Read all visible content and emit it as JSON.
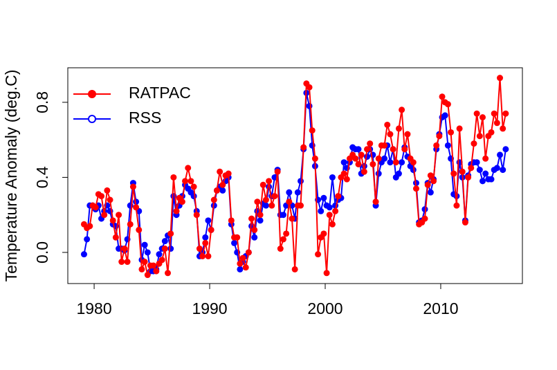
{
  "chart_data": {
    "type": "line",
    "ylabel": "Temperature Anomaly (deg.C)",
    "legend": "top-left",
    "xlim": [
      1977.72,
      2017.07
    ],
    "ylim": [
      -0.166,
      0.984
    ],
    "xticks": [
      1980,
      1990,
      2000,
      2010
    ],
    "yticks": [
      {
        "value": 0,
        "label": "0.0"
      },
      {
        "value": 0.4,
        "label": "0.4"
      },
      {
        "value": 0.8,
        "label": "0.8"
      }
    ],
    "x": [
      1979.125,
      1979.375,
      1979.625,
      1979.875,
      1980.125,
      1980.375,
      1980.625,
      1980.875,
      1981.125,
      1981.375,
      1981.625,
      1981.875,
      1982.125,
      1982.375,
      1982.625,
      1982.875,
      1983.125,
      1983.375,
      1983.625,
      1983.875,
      1984.125,
      1984.375,
      1984.625,
      1984.875,
      1985.125,
      1985.375,
      1985.625,
      1985.875,
      1986.125,
      1986.375,
      1986.625,
      1986.875,
      1987.125,
      1987.375,
      1987.625,
      1987.875,
      1988.125,
      1988.375,
      1988.625,
      1988.875,
      1989.125,
      1989.375,
      1989.625,
      1989.875,
      1990.125,
      1990.375,
      1990.625,
      1990.875,
      1991.125,
      1991.375,
      1991.625,
      1991.875,
      1992.125,
      1992.375,
      1992.625,
      1992.875,
      1993.125,
      1993.375,
      1993.625,
      1993.875,
      1994.125,
      1994.375,
      1994.625,
      1994.875,
      1995.125,
      1995.375,
      1995.625,
      1995.875,
      1996.125,
      1996.375,
      1996.625,
      1996.875,
      1997.125,
      1997.375,
      1997.625,
      1997.875,
      1998.125,
      1998.375,
      1998.625,
      1998.875,
      1999.125,
      1999.375,
      1999.625,
      1999.875,
      2000.125,
      2000.375,
      2000.625,
      2000.875,
      2001.125,
      2001.375,
      2001.625,
      2001.875,
      2002.125,
      2002.375,
      2002.625,
      2002.875,
      2003.125,
      2003.375,
      2003.625,
      2003.875,
      2004.125,
      2004.375,
      2004.625,
      2004.875,
      2005.125,
      2005.375,
      2005.625,
      2005.875,
      2006.125,
      2006.375,
      2006.625,
      2006.875,
      2007.125,
      2007.375,
      2007.625,
      2007.875,
      2008.125,
      2008.375,
      2008.625,
      2008.875,
      2009.125,
      2009.375,
      2009.625,
      2009.875,
      2010.125,
      2010.375,
      2010.625,
      2010.875,
      2011.125,
      2011.375,
      2011.625,
      2011.875,
      2012.125,
      2012.375,
      2012.625,
      2012.875,
      2013.125,
      2013.375,
      2013.625,
      2013.875,
      2014.125,
      2014.375,
      2014.625,
      2014.875,
      2015.125,
      2015.375,
      2015.625
    ],
    "series": [
      {
        "name": "RSS",
        "color": "#0000ff",
        "marker": "open",
        "values": [
          -0.01,
          0.07,
          0.25,
          0.25,
          0.23,
          0.25,
          0.18,
          0.22,
          0.25,
          0.22,
          0.15,
          0.14,
          0.02,
          0.02,
          0.01,
          0.07,
          0.25,
          0.37,
          0.27,
          0.22,
          -0.04,
          0.04,
          0.0,
          -0.1,
          -0.1,
          -0.09,
          -0.01,
          0.02,
          0.06,
          0.09,
          0.02,
          0.3,
          0.2,
          0.25,
          0.3,
          0.36,
          0.34,
          0.32,
          0.3,
          0.22,
          -0.02,
          0.0,
          0.08,
          0.17,
          0.12,
          0.25,
          0.33,
          0.35,
          0.33,
          0.38,
          0.4,
          0.15,
          0.05,
          0.0,
          -0.09,
          -0.05,
          -0.02,
          0.0,
          0.14,
          0.08,
          0.22,
          0.17,
          0.26,
          0.25,
          0.35,
          0.3,
          0.4,
          0.44,
          0.2,
          0.2,
          0.25,
          0.32,
          0.25,
          0.18,
          0.32,
          0.38,
          0.55,
          0.85,
          0.78,
          0.57,
          0.46,
          0.28,
          0.22,
          0.29,
          0.25,
          0.24,
          0.4,
          0.25,
          0.28,
          0.29,
          0.48,
          0.45,
          0.48,
          0.56,
          0.55,
          0.55,
          0.42,
          0.46,
          0.51,
          0.55,
          0.52,
          0.25,
          0.42,
          0.48,
          0.5,
          0.57,
          0.48,
          0.55,
          0.4,
          0.42,
          0.48,
          0.56,
          0.51,
          0.46,
          0.44,
          0.37,
          0.16,
          0.17,
          0.23,
          0.37,
          0.32,
          0.39,
          0.55,
          0.63,
          0.72,
          0.73,
          0.57,
          0.5,
          0.31,
          0.3,
          0.48,
          0.4,
          0.17,
          0.41,
          0.47,
          0.48,
          0.48,
          0.44,
          0.38,
          0.42,
          0.39,
          0.39,
          0.44,
          0.45,
          0.52,
          0.44,
          0.55
        ]
      },
      {
        "name": "RATPAC",
        "color": "#ff0000",
        "marker": "filled",
        "values": [
          0.15,
          0.13,
          0.14,
          0.25,
          0.24,
          0.31,
          0.3,
          0.2,
          0.33,
          0.28,
          0.17,
          0.08,
          0.2,
          -0.05,
          0.02,
          -0.05,
          0.15,
          0.35,
          0.24,
          0.12,
          -0.09,
          -0.05,
          -0.12,
          -0.07,
          -0.07,
          -0.1,
          -0.06,
          -0.04,
          0.02,
          -0.11,
          0.1,
          0.4,
          0.22,
          0.29,
          0.27,
          0.38,
          0.45,
          0.38,
          0.35,
          0.2,
          0.02,
          -0.02,
          0.05,
          -0.02,
          0.12,
          0.28,
          0.33,
          0.43,
          0.36,
          0.41,
          0.42,
          0.17,
          0.08,
          0.08,
          -0.06,
          -0.03,
          -0.08,
          0.0,
          0.18,
          0.12,
          0.27,
          0.2,
          0.36,
          0.28,
          0.38,
          0.25,
          0.3,
          0.43,
          0.02,
          0.07,
          0.1,
          0.27,
          0.18,
          -0.09,
          0.25,
          0.25,
          0.56,
          0.9,
          0.88,
          0.65,
          0.5,
          -0.01,
          0.08,
          0.1,
          -0.11,
          0.2,
          0.15,
          0.22,
          0.3,
          0.4,
          0.42,
          0.39,
          0.5,
          0.52,
          0.5,
          0.47,
          0.52,
          0.43,
          0.55,
          0.58,
          0.47,
          0.27,
          0.5,
          0.57,
          0.57,
          0.68,
          0.63,
          0.55,
          0.48,
          0.66,
          0.76,
          0.55,
          0.63,
          0.5,
          0.48,
          0.34,
          0.15,
          0.16,
          0.18,
          0.36,
          0.41,
          0.38,
          0.57,
          0.62,
          0.83,
          0.8,
          0.79,
          0.64,
          0.42,
          0.25,
          0.66,
          0.43,
          0.16,
          0.4,
          0.45,
          0.58,
          0.74,
          0.62,
          0.72,
          0.5,
          0.62,
          0.64,
          0.74,
          0.69,
          0.93,
          0.66,
          0.74
        ]
      }
    ]
  }
}
